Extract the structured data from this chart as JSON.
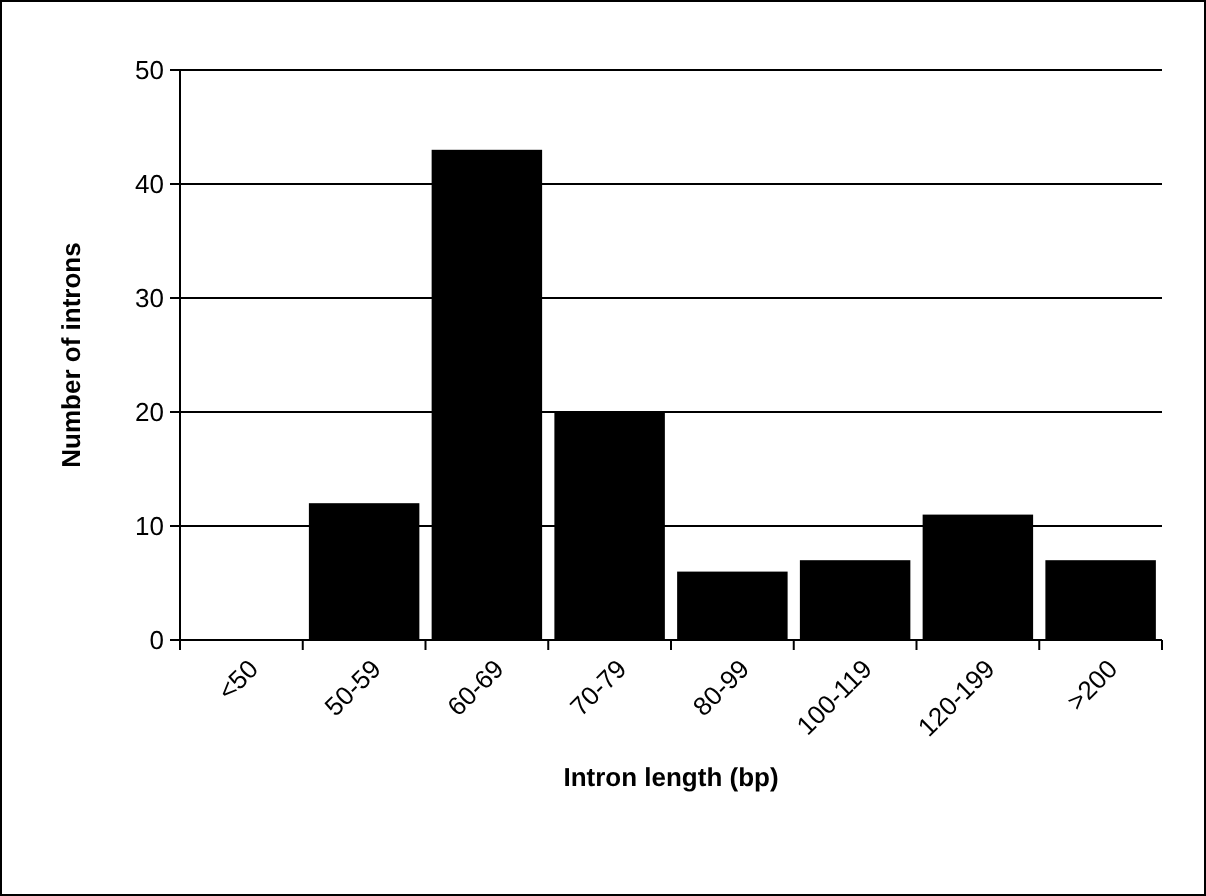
{
  "chart_data": {
    "type": "bar",
    "xlabel": "Intron length (bp)",
    "ylabel": "Number of introns",
    "categories": [
      "<50",
      "50-59",
      "60-69",
      "70-79",
      "80-99",
      "100-119",
      "120-199",
      ">200"
    ],
    "values": [
      0,
      12,
      43,
      20,
      6,
      7,
      11,
      7
    ],
    "color": "#000000",
    "ylim": [
      0,
      50
    ],
    "yticks": [
      0,
      10,
      20,
      30,
      40,
      50
    ],
    "grid": "y"
  }
}
